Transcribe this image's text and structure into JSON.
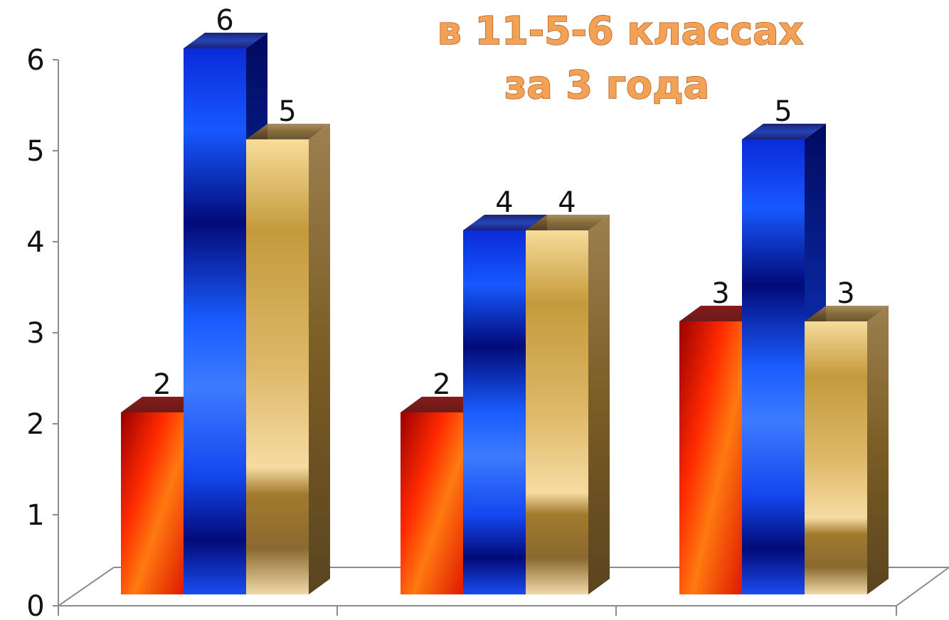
{
  "chart_data": {
    "type": "bar",
    "title_lines": [
      "в 11-5-6 классах",
      "за 3 года"
    ],
    "categories": [
      "",
      "",
      ""
    ],
    "series": [
      {
        "values": [
          2,
          2,
          3
        ],
        "color": "#e8200a"
      },
      {
        "values": [
          6,
          4,
          5
        ],
        "color": "#1f4fe6"
      },
      {
        "values": [
          5,
          4,
          3
        ],
        "color": "#d9b26a"
      }
    ],
    "ylim": [
      0,
      6
    ],
    "yticks": [
      0,
      1,
      2,
      3,
      4,
      5,
      6
    ],
    "grid": false,
    "data_labels": true,
    "legend": "none"
  }
}
